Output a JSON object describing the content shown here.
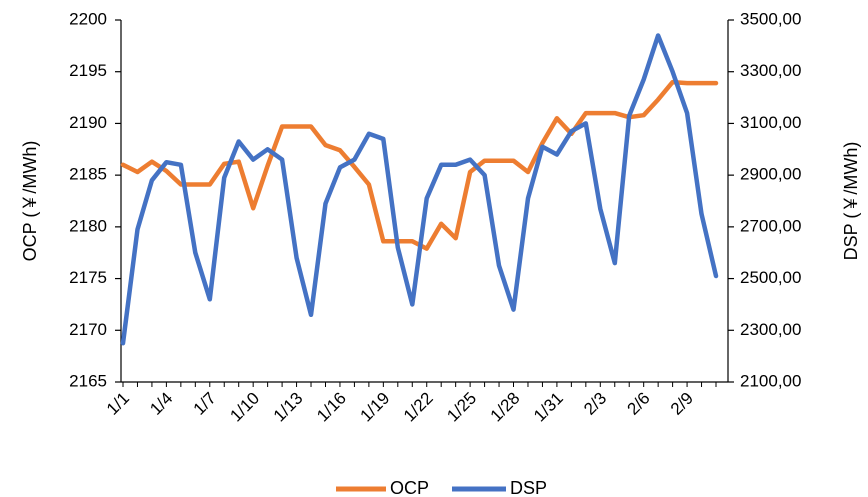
{
  "chart_data": {
    "type": "line",
    "x": [
      "1/1",
      "1/2",
      "1/3",
      "1/4",
      "1/5",
      "1/6",
      "1/7",
      "1/8",
      "1/9",
      "1/10",
      "1/11",
      "1/12",
      "1/13",
      "1/14",
      "1/15",
      "1/16",
      "1/17",
      "1/18",
      "1/19",
      "1/20",
      "1/21",
      "1/22",
      "1/23",
      "1/24",
      "1/25",
      "1/26",
      "1/27",
      "1/28",
      "1/29",
      "1/30",
      "1/31",
      "2/1",
      "2/2",
      "2/3",
      "2/4",
      "2/5",
      "2/6",
      "2/7",
      "2/8",
      "2/9",
      "2/10",
      "2/11"
    ],
    "x_tick_labels": [
      "1/1",
      "1/4",
      "1/7",
      "1/10",
      "1/13",
      "1/16",
      "1/19",
      "1/22",
      "1/25",
      "1/28",
      "1/31",
      "2/3",
      "2/6",
      "2/9"
    ],
    "ylabel_left": "OCP (￥/MWh)",
    "ylabel_right": "DSP (￥/MWh)",
    "ylim_left": [
      2165,
      2200
    ],
    "ylim_right": [
      2100,
      3500
    ],
    "yticks_left": [
      "2165",
      "2170",
      "2175",
      "2180",
      "2185",
      "2190",
      "2195",
      "2200"
    ],
    "yticks_right": [
      "2100,00",
      "2300,00",
      "2500,00",
      "2700,00",
      "2900,00",
      "3100,00",
      "3300,00",
      "3500,00"
    ],
    "grid": false,
    "legend": "bottom",
    "series": [
      {
        "name": "OCP",
        "axis": "left",
        "color": "#ED7D31",
        "values": [
          2186.0,
          2185.3,
          2186.3,
          2185.4,
          2184.1,
          2184.1,
          2184.1,
          2186.1,
          2186.3,
          2181.8,
          2185.9,
          2189.7,
          2189.7,
          2189.7,
          2187.9,
          2187.4,
          2185.8,
          2184.1,
          2178.6,
          2178.6,
          2178.6,
          2177.9,
          2180.3,
          2178.9,
          2185.3,
          2186.4,
          2186.4,
          2186.4,
          2185.3,
          2188.1,
          2190.5,
          2189.0,
          2191.0,
          2191.0,
          2191.0,
          2190.6,
          2190.8,
          2192.3,
          2194.0,
          2193.9,
          2193.9,
          2193.9
        ]
      },
      {
        "name": "DSP",
        "axis": "right",
        "color": "#4472C4",
        "values": [
          2250,
          2690,
          2880,
          2950,
          2940,
          2600,
          2420,
          2890,
          3030,
          2960,
          3000,
          2960,
          2580,
          2360,
          2790,
          2930,
          2960,
          3060,
          3040,
          2620,
          2400,
          2810,
          2940,
          2940,
          2960,
          2900,
          2550,
          2380,
          2810,
          3010,
          2980,
          3070,
          3100,
          2770,
          2560,
          3130,
          3270,
          3440,
          3300,
          3140,
          2750,
          2510
        ]
      }
    ]
  }
}
